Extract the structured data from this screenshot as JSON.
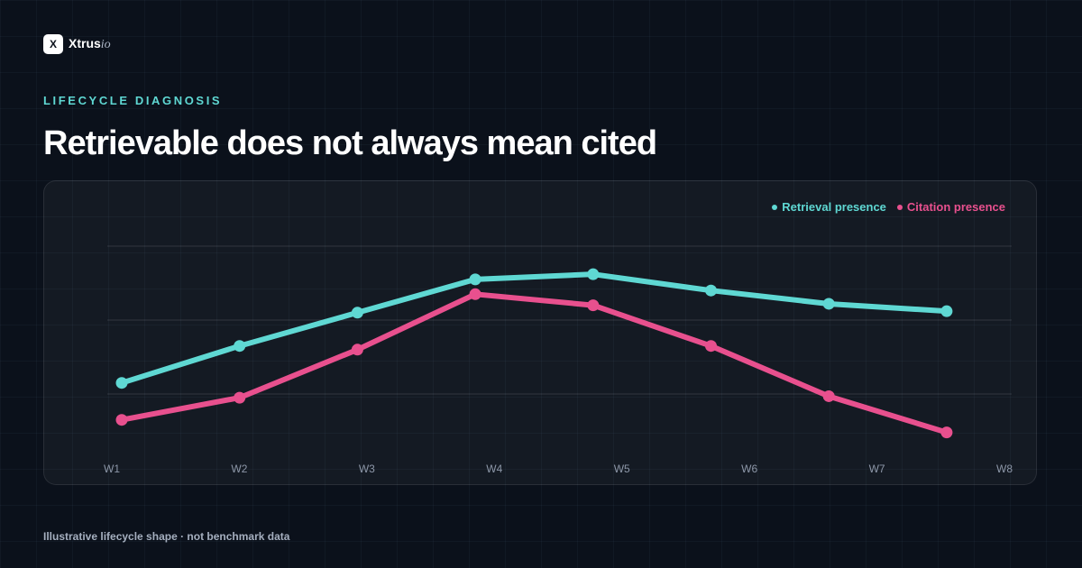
{
  "brand": {
    "mark": "X",
    "name": "Xtrus",
    "suffix": "io"
  },
  "eyebrow": "LIFECYCLE DIAGNOSIS",
  "headline": "Retrievable does not always mean cited",
  "footnote": "Illustrative lifecycle shape · not benchmark data",
  "colors": {
    "retrieval": "#5fd8d3",
    "citation": "#e8508e",
    "background": "#0b111b"
  },
  "chart_data": {
    "type": "line",
    "title": "",
    "xlabel": "",
    "ylabel": "",
    "categories": [
      "W1",
      "W2",
      "W3",
      "W4",
      "W5",
      "W6",
      "W7",
      "W8"
    ],
    "ylim": [
      0,
      3
    ],
    "grid": true,
    "legend_position": "top-right",
    "series": [
      {
        "name": "Retrieval presence",
        "color": "#5fd8d3",
        "values": [
          1.15,
          1.65,
          2.1,
          2.55,
          2.62,
          2.4,
          2.22,
          2.12
        ]
      },
      {
        "name": "Citation presence",
        "color": "#e8508e",
        "values": [
          0.65,
          0.95,
          1.6,
          2.35,
          2.2,
          1.65,
          0.97,
          0.48
        ]
      }
    ]
  }
}
